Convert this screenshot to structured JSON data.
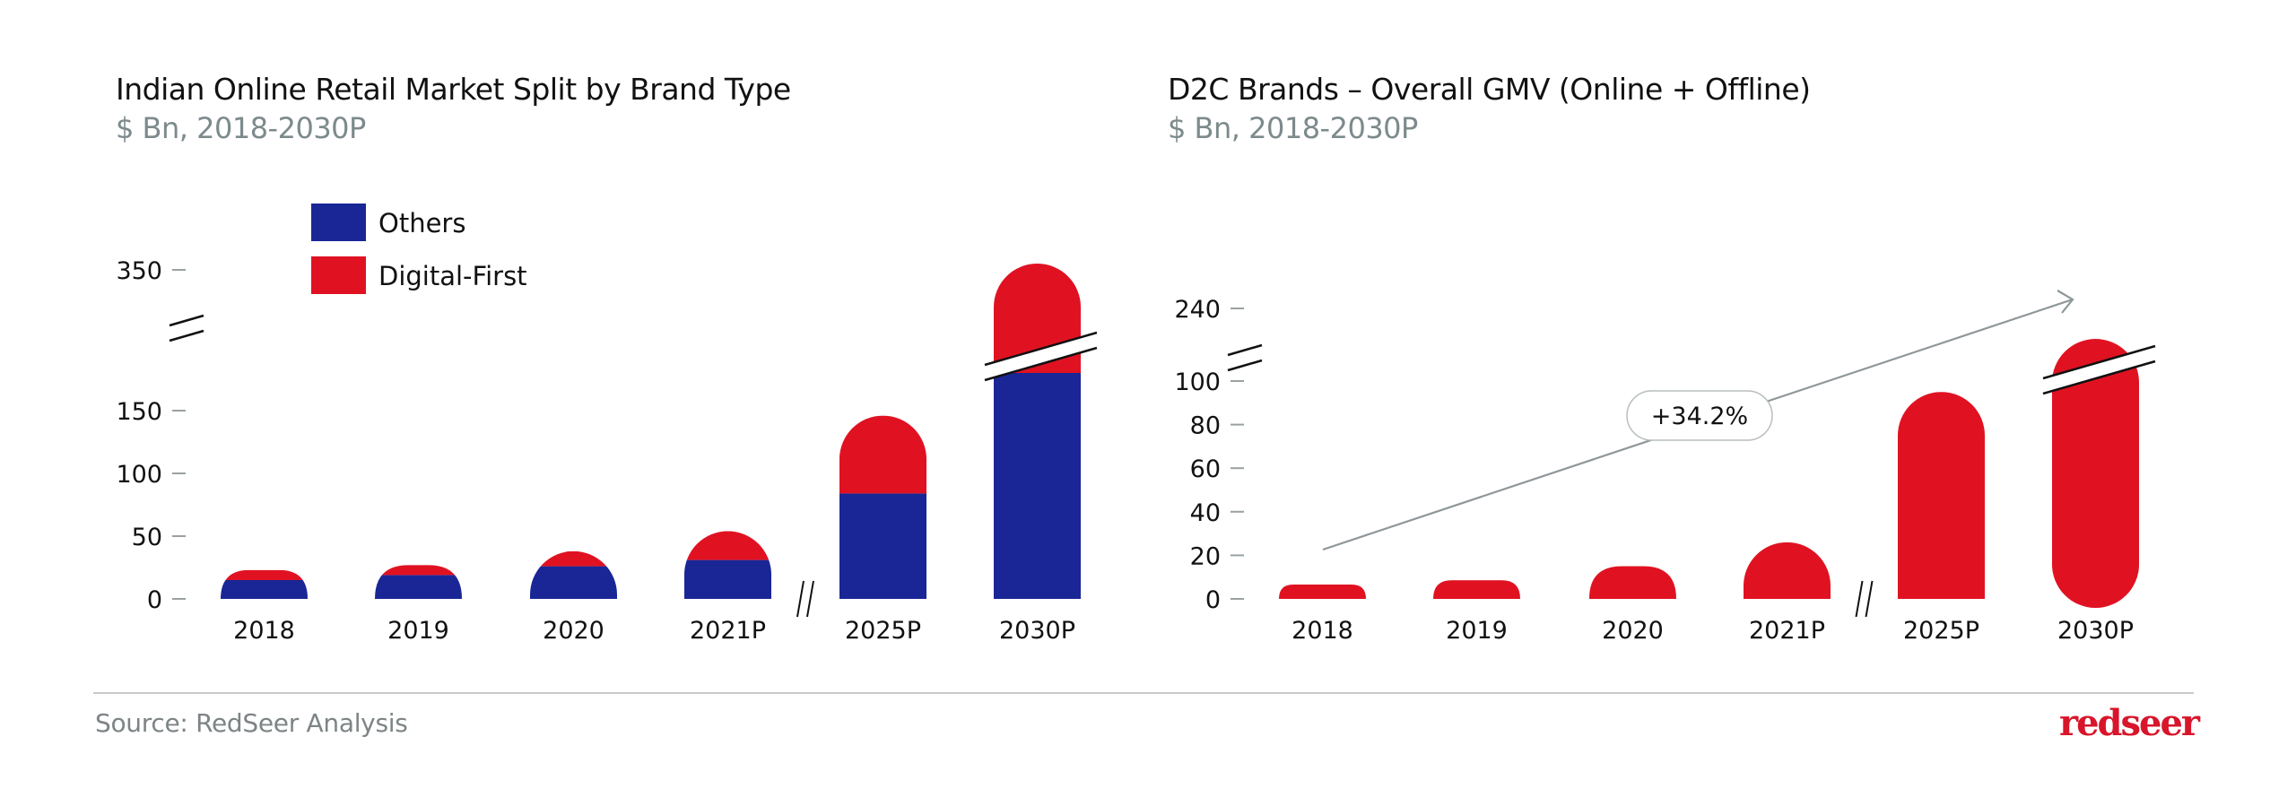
{
  "colors": {
    "others": "#1a2696",
    "digital_first": "#e01222",
    "axis_tick": "#9aa0a2",
    "break_line": "#111111",
    "trend_arrow": "#8e9799",
    "logo": "#d8152a"
  },
  "chart_data": [
    {
      "type": "bar",
      "stacked": true,
      "title": "Indian Online Retail Market Split by Brand Type",
      "subtitle": "$ Bn, 2018-2030P",
      "xlabel": "",
      "ylabel": "",
      "categories": [
        "2018",
        "2019",
        "2020",
        "2021P",
        "2025P",
        "2030P"
      ],
      "series": [
        {
          "name": "Others",
          "values": [
            15,
            19,
            26,
            31,
            84,
            180
          ]
        },
        {
          "name": "Digital-First",
          "values": [
            8,
            8,
            12,
            23,
            62,
            175
          ]
        }
      ],
      "totals": [
        23,
        27,
        38,
        54,
        146,
        355
      ],
      "yticks": [
        0,
        50,
        100,
        150,
        350
      ],
      "ylim": [
        0,
        355
      ],
      "y_axis_break": [
        150,
        350
      ],
      "x_axis_break_between": [
        "2021P",
        "2025P"
      ],
      "bar_break_on": [
        "2030P"
      ],
      "legend": [
        "Others",
        "Digital-First"
      ],
      "legend_position": "top-left",
      "grid": false
    },
    {
      "type": "bar",
      "title": "D2C Brands – Overall GMV (Online + Offline)",
      "subtitle": "$ Bn, 2018-2030P",
      "xlabel": "",
      "ylabel": "",
      "categories": [
        "2018",
        "2019",
        "2020",
        "2021P",
        "2025P",
        "2030P"
      ],
      "series": [
        {
          "name": "D2C GMV",
          "values": [
            6.6,
            8.6,
            15,
            26,
            95,
            226
          ]
        }
      ],
      "yticks": [
        0,
        20,
        40,
        60,
        80,
        100,
        240
      ],
      "ylim": [
        0,
        240
      ],
      "y_axis_break": [
        100,
        240
      ],
      "x_axis_break_between": [
        "2021P",
        "2025P"
      ],
      "bar_break_on": [
        "2030P"
      ],
      "annotation": {
        "text": "+34.2%",
        "type": "CAGR trend arrow",
        "from": "2018",
        "to": "2030P"
      },
      "grid": false
    }
  ],
  "footer": {
    "source": "Source: RedSeer Analysis",
    "logo_text": "redseer"
  }
}
